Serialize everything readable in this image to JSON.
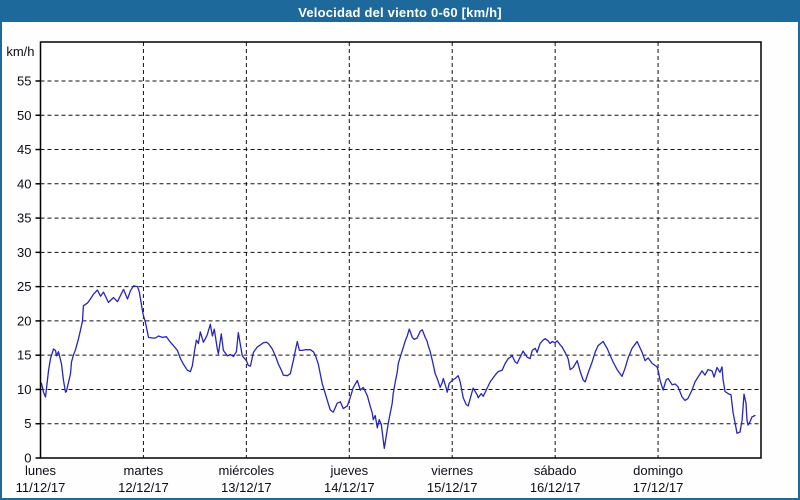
{
  "window": {
    "title": "Velocidad del viento 0-60 [km/h]"
  },
  "colors": {
    "frame": "#1d699c",
    "titlebar": "#1d699c",
    "titlebar_text": "#ffffff",
    "background": "#fdfefd",
    "plot_background": "#ffffff",
    "grid": "#111111",
    "axis_border": "#000000",
    "axis_text": "#0c0c16",
    "series_line": "#2626bb"
  },
  "chart_data": {
    "type": "line",
    "title": "Velocidad del viento 0-60 [km/h]",
    "grid": "dashed",
    "legend": "none",
    "y_axis": {
      "unit_label": "km/h",
      "tick_values": [
        0,
        5,
        10,
        15,
        20,
        25,
        30,
        35,
        40,
        45,
        50,
        55
      ],
      "range": [
        0,
        60.6
      ]
    },
    "x_axis": {
      "range_days": [
        0,
        7
      ],
      "day_labels": [
        {
          "name": "lunes",
          "date": "11/12/17"
        },
        {
          "name": "martes",
          "date": "12/12/17"
        },
        {
          "name": "miércoles",
          "date": "13/12/17"
        },
        {
          "name": "jueves",
          "date": "14/12/17"
        },
        {
          "name": "viernes",
          "date": "15/12/17"
        },
        {
          "name": "sábado",
          "date": "16/12/17"
        },
        {
          "name": "domingo",
          "date": "17/12/17"
        }
      ]
    },
    "series": [
      {
        "name": "velocidad del viento",
        "unit": "km/h",
        "color": "#2626bb",
        "points_day_value": [
          [
            0.01,
            10.9
          ],
          [
            0.029,
            9.6
          ],
          [
            0.049,
            8.9
          ],
          [
            0.078,
            12.7
          ],
          [
            0.097,
            14.5
          ],
          [
            0.126,
            15.9
          ],
          [
            0.146,
            15.7
          ],
          [
            0.155,
            14.9
          ],
          [
            0.175,
            15.5
          ],
          [
            0.204,
            13.7
          ],
          [
            0.223,
            11.3
          ],
          [
            0.243,
            9.6
          ],
          [
            0.252,
            9.7
          ],
          [
            0.291,
            12.3
          ],
          [
            0.301,
            14.0
          ],
          [
            0.32,
            15.0
          ],
          [
            0.34,
            15.8
          ],
          [
            0.369,
            17.4
          ],
          [
            0.388,
            18.6
          ],
          [
            0.408,
            20.0
          ],
          [
            0.417,
            22.2
          ],
          [
            0.456,
            22.6
          ],
          [
            0.485,
            23.2
          ],
          [
            0.515,
            23.9
          ],
          [
            0.553,
            24.5
          ],
          [
            0.583,
            23.6
          ],
          [
            0.612,
            24.2
          ],
          [
            0.66,
            22.7
          ],
          [
            0.709,
            23.4
          ],
          [
            0.748,
            22.8
          ],
          [
            0.806,
            24.6
          ],
          [
            0.845,
            23.2
          ],
          [
            0.874,
            24.4
          ],
          [
            0.903,
            25.1
          ],
          [
            0.942,
            25.0
          ],
          [
            0.961,
            24.2
          ],
          [
            0.99,
            21.5
          ],
          [
            1.0,
            20.8
          ],
          [
            1.019,
            19.8
          ],
          [
            1.049,
            17.6
          ],
          [
            1.087,
            17.5
          ],
          [
            1.117,
            17.5
          ],
          [
            1.146,
            17.8
          ],
          [
            1.184,
            17.6
          ],
          [
            1.223,
            17.7
          ],
          [
            1.262,
            16.9
          ],
          [
            1.291,
            16.4
          ],
          [
            1.33,
            15.7
          ],
          [
            1.359,
            14.5
          ],
          [
            1.388,
            13.7
          ],
          [
            1.427,
            12.8
          ],
          [
            1.456,
            12.6
          ],
          [
            1.476,
            13.5
          ],
          [
            1.495,
            15.5
          ],
          [
            1.515,
            17.2
          ],
          [
            1.534,
            16.7
          ],
          [
            1.553,
            18.4
          ],
          [
            1.583,
            16.9
          ],
          [
            1.602,
            17.4
          ],
          [
            1.621,
            18.0
          ],
          [
            1.65,
            19.5
          ],
          [
            1.67,
            17.8
          ],
          [
            1.689,
            18.8
          ],
          [
            1.718,
            15.9
          ],
          [
            1.728,
            15.2
          ],
          [
            1.757,
            18.1
          ],
          [
            1.777,
            15.7
          ],
          [
            1.816,
            14.9
          ],
          [
            1.845,
            15.1
          ],
          [
            1.874,
            14.8
          ],
          [
            1.903,
            15.5
          ],
          [
            1.922,
            18.3
          ],
          [
            1.942,
            16.5
          ],
          [
            1.961,
            14.9
          ],
          [
            2.0,
            14.2
          ],
          [
            2.019,
            13.5
          ],
          [
            2.039,
            13.4
          ],
          [
            2.068,
            15.4
          ],
          [
            2.107,
            16.2
          ],
          [
            2.136,
            16.5
          ],
          [
            2.165,
            16.8
          ],
          [
            2.194,
            16.9
          ],
          [
            2.214,
            16.7
          ],
          [
            2.252,
            15.9
          ],
          [
            2.282,
            14.9
          ],
          [
            2.311,
            13.7
          ],
          [
            2.34,
            12.8
          ],
          [
            2.359,
            12.1
          ],
          [
            2.398,
            12.0
          ],
          [
            2.427,
            12.3
          ],
          [
            2.456,
            14.2
          ],
          [
            2.476,
            15.7
          ],
          [
            2.495,
            17.0
          ],
          [
            2.515,
            15.7
          ],
          [
            2.544,
            15.7
          ],
          [
            2.573,
            15.8
          ],
          [
            2.602,
            15.8
          ],
          [
            2.621,
            15.8
          ],
          [
            2.65,
            15.5
          ],
          [
            2.67,
            15.0
          ],
          [
            2.699,
            13.7
          ],
          [
            2.738,
            10.8
          ],
          [
            2.767,
            9.4
          ],
          [
            2.786,
            8.4
          ],
          [
            2.816,
            7.0
          ],
          [
            2.845,
            6.7
          ],
          [
            2.883,
            8.0
          ],
          [
            2.913,
            8.2
          ],
          [
            2.942,
            7.2
          ],
          [
            2.981,
            7.6
          ],
          [
            3.0,
            8.4
          ],
          [
            3.039,
            10.3
          ],
          [
            3.078,
            11.3
          ],
          [
            3.107,
            9.9
          ],
          [
            3.136,
            10.3
          ],
          [
            3.175,
            9.1
          ],
          [
            3.204,
            7.5
          ],
          [
            3.223,
            6.6
          ],
          [
            3.233,
            5.6
          ],
          [
            3.252,
            6.2
          ],
          [
            3.272,
            4.4
          ],
          [
            3.291,
            5.6
          ],
          [
            3.311,
            4.9
          ],
          [
            3.34,
            1.4
          ],
          [
            3.379,
            5.1
          ],
          [
            3.398,
            6.6
          ],
          [
            3.417,
            8.0
          ],
          [
            3.427,
            9.4
          ],
          [
            3.447,
            11.1
          ],
          [
            3.466,
            12.6
          ],
          [
            3.476,
            13.8
          ],
          [
            3.495,
            14.7
          ],
          [
            3.515,
            15.7
          ],
          [
            3.544,
            17.1
          ],
          [
            3.563,
            17.8
          ],
          [
            3.583,
            18.8
          ],
          [
            3.612,
            17.6
          ],
          [
            3.631,
            17.3
          ],
          [
            3.66,
            17.5
          ],
          [
            3.689,
            18.5
          ],
          [
            3.709,
            18.7
          ],
          [
            3.738,
            17.6
          ],
          [
            3.757,
            17.0
          ],
          [
            3.767,
            16.4
          ],
          [
            3.786,
            15.5
          ],
          [
            3.806,
            14.3
          ],
          [
            3.835,
            12.3
          ],
          [
            3.854,
            11.6
          ],
          [
            3.883,
            10.3
          ],
          [
            3.903,
            11.0
          ],
          [
            3.913,
            11.6
          ],
          [
            3.942,
            10.2
          ],
          [
            3.951,
            9.6
          ],
          [
            3.971,
            10.9
          ],
          [
            4.0,
            11.3
          ],
          [
            4.029,
            11.6
          ],
          [
            4.058,
            12.0
          ],
          [
            4.078,
            11.1
          ],
          [
            4.107,
            8.8
          ],
          [
            4.136,
            7.8
          ],
          [
            4.155,
            7.6
          ],
          [
            4.194,
            9.7
          ],
          [
            4.204,
            10.2
          ],
          [
            4.243,
            9.2
          ],
          [
            4.252,
            8.8
          ],
          [
            4.282,
            9.4
          ],
          [
            4.301,
            9.0
          ],
          [
            4.34,
            10.2
          ],
          [
            4.369,
            11.1
          ],
          [
            4.417,
            12.1
          ],
          [
            4.447,
            12.6
          ],
          [
            4.485,
            12.8
          ],
          [
            4.515,
            13.8
          ],
          [
            4.544,
            14.5
          ],
          [
            4.583,
            14.9
          ],
          [
            4.612,
            14.0
          ],
          [
            4.631,
            13.8
          ],
          [
            4.66,
            14.7
          ],
          [
            4.689,
            15.6
          ],
          [
            4.728,
            14.7
          ],
          [
            4.757,
            14.5
          ],
          [
            4.777,
            15.7
          ],
          [
            4.806,
            16.0
          ],
          [
            4.825,
            15.4
          ],
          [
            4.854,
            16.7
          ],
          [
            4.883,
            17.2
          ],
          [
            4.903,
            17.4
          ],
          [
            4.932,
            17.1
          ],
          [
            4.951,
            16.7
          ],
          [
            4.971,
            17.0
          ],
          [
            5.0,
            16.8
          ],
          [
            5.019,
            17.1
          ],
          [
            5.049,
            16.5
          ],
          [
            5.068,
            16.2
          ],
          [
            5.097,
            15.4
          ],
          [
            5.126,
            14.5
          ],
          [
            5.146,
            12.9
          ],
          [
            5.175,
            13.2
          ],
          [
            5.214,
            14.2
          ],
          [
            5.243,
            12.6
          ],
          [
            5.272,
            11.4
          ],
          [
            5.291,
            11.1
          ],
          [
            5.32,
            12.4
          ],
          [
            5.359,
            14.0
          ],
          [
            5.388,
            15.4
          ],
          [
            5.417,
            16.4
          ],
          [
            5.466,
            17.0
          ],
          [
            5.505,
            16.0
          ],
          [
            5.534,
            15.0
          ],
          [
            5.563,
            14.0
          ],
          [
            5.602,
            12.9
          ],
          [
            5.65,
            11.9
          ],
          [
            5.68,
            13.1
          ],
          [
            5.709,
            14.6
          ],
          [
            5.748,
            16.0
          ],
          [
            5.796,
            17.0
          ],
          [
            5.845,
            15.4
          ],
          [
            5.874,
            14.2
          ],
          [
            5.903,
            14.6
          ],
          [
            5.942,
            13.8
          ],
          [
            5.971,
            13.5
          ],
          [
            5.99,
            13.3
          ],
          [
            6.0,
            12.8
          ],
          [
            6.019,
            11.4
          ],
          [
            6.049,
            9.9
          ],
          [
            6.078,
            11.4
          ],
          [
            6.097,
            11.6
          ],
          [
            6.136,
            10.7
          ],
          [
            6.165,
            10.8
          ],
          [
            6.194,
            10.4
          ],
          [
            6.233,
            8.9
          ],
          [
            6.262,
            8.4
          ],
          [
            6.291,
            8.7
          ],
          [
            6.33,
            9.9
          ],
          [
            6.359,
            11.1
          ],
          [
            6.388,
            11.8
          ],
          [
            6.427,
            12.7
          ],
          [
            6.456,
            12.1
          ],
          [
            6.485,
            12.9
          ],
          [
            6.524,
            12.7
          ],
          [
            6.544,
            11.8
          ],
          [
            6.573,
            13.2
          ],
          [
            6.602,
            12.5
          ],
          [
            6.621,
            13.3
          ],
          [
            6.631,
            11.5
          ],
          [
            6.65,
            9.7
          ],
          [
            6.68,
            9.4
          ],
          [
            6.709,
            9.2
          ],
          [
            6.728,
            6.7
          ],
          [
            6.748,
            5.1
          ],
          [
            6.767,
            3.6
          ],
          [
            6.796,
            3.8
          ],
          [
            6.816,
            5.5
          ],
          [
            6.835,
            9.3
          ],
          [
            6.854,
            8.0
          ],
          [
            6.864,
            5.5
          ],
          [
            6.874,
            4.8
          ],
          [
            6.893,
            5.3
          ],
          [
            6.913,
            6.0
          ],
          [
            6.942,
            6.2
          ]
        ]
      }
    ]
  }
}
